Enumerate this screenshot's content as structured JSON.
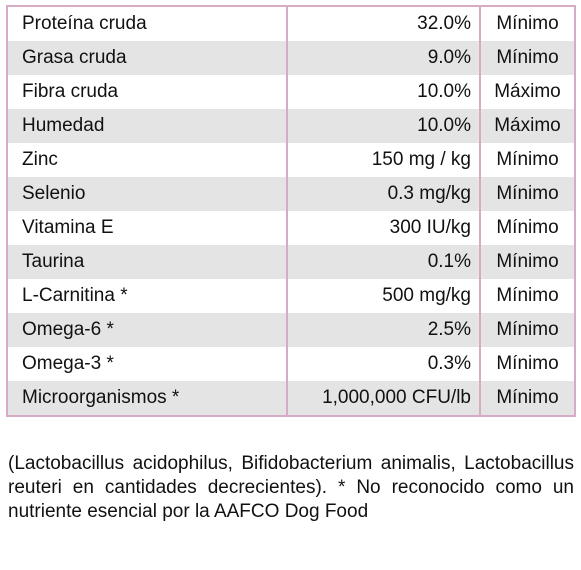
{
  "table": {
    "rows": [
      [
        "Proteína cruda",
        "32.0%",
        "Mínimo"
      ],
      [
        "Grasa cruda",
        "9.0%",
        "Mínimo"
      ],
      [
        "Fibra cruda",
        "10.0%",
        "Máximo"
      ],
      [
        "Humedad",
        "10.0%",
        "Máximo"
      ],
      [
        "Zinc",
        "150 mg / kg",
        "Mínimo"
      ],
      [
        "Selenio",
        "0.3 mg/kg",
        "Mínimo"
      ],
      [
        "Vitamina E",
        "300 IU/kg",
        "Mínimo"
      ],
      [
        "Taurina",
        "0.1%",
        "Mínimo"
      ],
      [
        "L-Carnitina *",
        "500 mg/kg",
        "Mínimo"
      ],
      [
        "Omega-6 *",
        "2.5%",
        "Mínimo"
      ],
      [
        "Omega-3 *",
        "0.3%",
        "Mínimo"
      ],
      [
        "Microorganismos *",
        "1,000,000 CFU/lb",
        "Mínimo"
      ]
    ]
  },
  "footnote": "(Lactobacillus acidophilus, Bifidobacterium animalis, Lactobacillus reuteri en cantidades decrecientes). * No reconocido como un nutriente esencial por la AAFCO Dog Food"
}
